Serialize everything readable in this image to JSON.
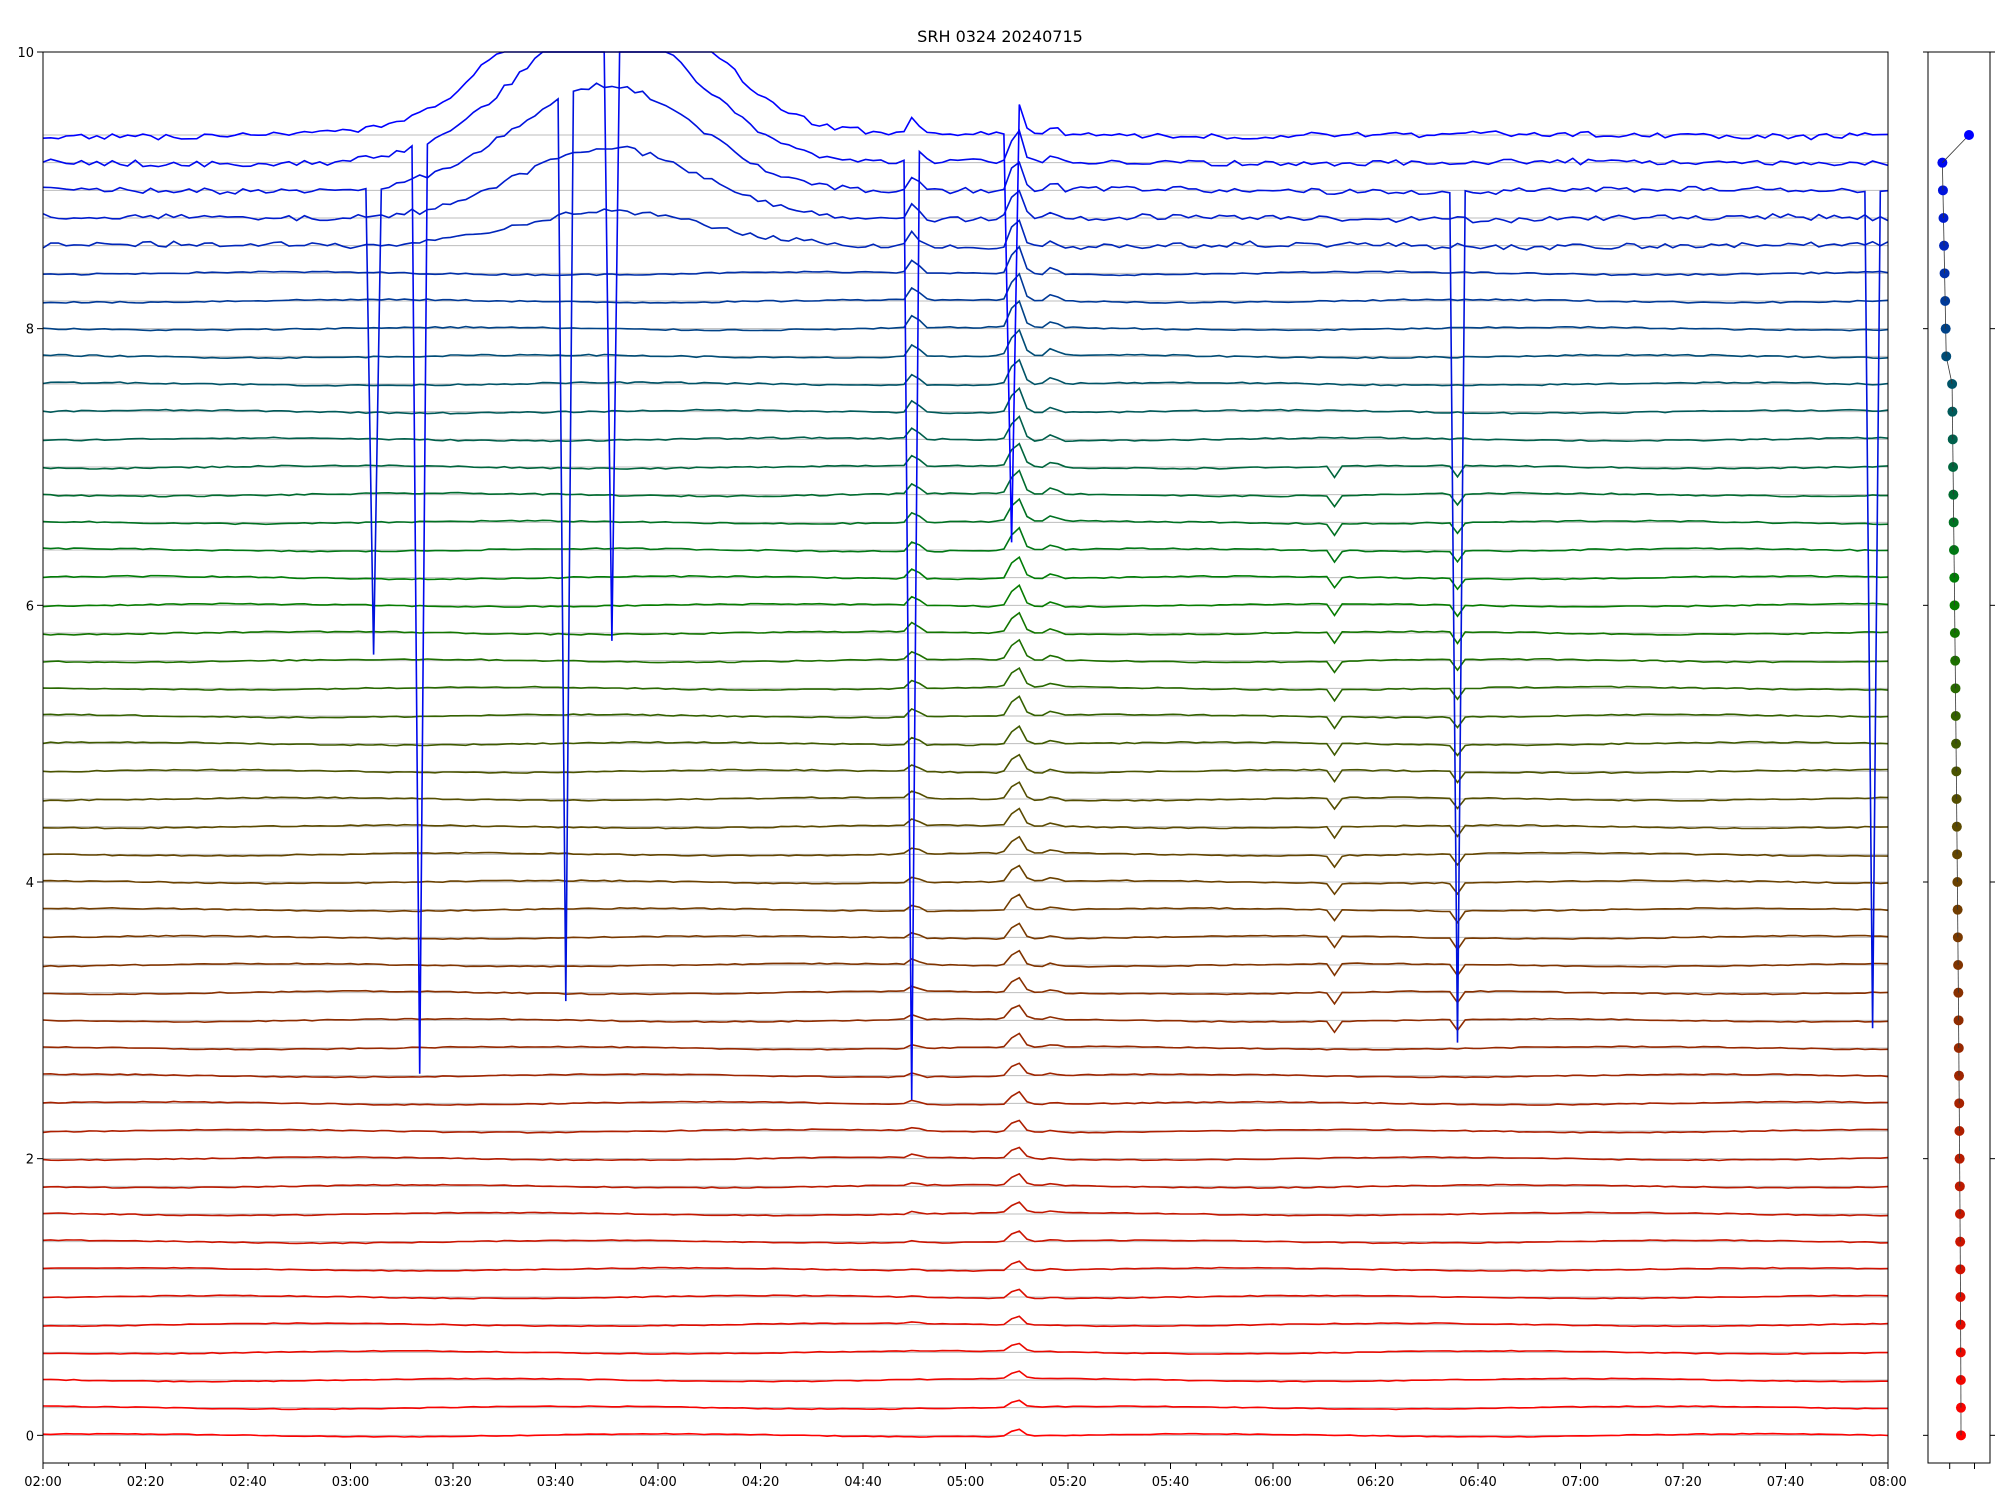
{
  "chart_data": [
    {
      "type": "line",
      "title": "SRH 0324 20240715",
      "xlabel": "",
      "ylabel": "",
      "x_ticks": [
        "02:00",
        "02:20",
        "02:40",
        "03:00",
        "03:20",
        "03:40",
        "04:00",
        "04:20",
        "04:40",
        "05:00",
        "05:20",
        "05:40",
        "06:00",
        "06:20",
        "06:40",
        "07:00",
        "07:20",
        "07:40",
        "08:00"
      ],
      "y_ticks": [
        "0",
        "2",
        "4",
        "6",
        "8",
        "10"
      ],
      "xlim": [
        "02:00",
        "08:00"
      ],
      "ylim": [
        -0.2,
        10
      ],
      "grid": "horizontal lines at each channel baseline",
      "channel_count": 48,
      "channel_spacing": 0.2,
      "first_channel_offset": 0.0,
      "color_start": "#ff0000",
      "color_end": "#0000ff",
      "events": [
        {
          "time": "04:50",
          "description": "burst peak"
        },
        {
          "time": "05:10",
          "description": "main burst peak"
        },
        {
          "time": "05:17",
          "description": "secondary peak"
        },
        {
          "time": "06:12",
          "description": "dip"
        },
        {
          "time": "06:36",
          "description": "dip"
        }
      ]
    },
    {
      "type": "scatter",
      "title": "",
      "points_count": 48,
      "color_start": "#ff0000",
      "color_end": "#0000ff"
    }
  ]
}
